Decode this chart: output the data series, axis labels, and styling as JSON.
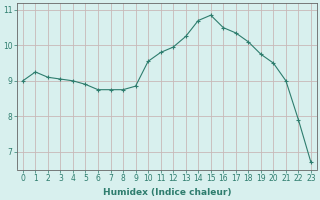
{
  "x": [
    0,
    1,
    2,
    3,
    4,
    5,
    6,
    7,
    8,
    9,
    10,
    11,
    12,
    13,
    14,
    15,
    16,
    17,
    18,
    19,
    20,
    21,
    22,
    23
  ],
  "y": [
    9.0,
    9.25,
    9.1,
    9.05,
    9.0,
    8.9,
    8.75,
    8.75,
    8.75,
    8.85,
    9.55,
    9.8,
    9.95,
    10.25,
    10.7,
    10.85,
    10.5,
    10.35,
    10.1,
    9.75,
    9.5,
    9.0,
    7.9,
    6.7
  ],
  "line_color": "#2e7d6e",
  "marker": "+",
  "marker_size": 3,
  "marker_linewidth": 0.8,
  "xlabel": "Humidex (Indice chaleur)",
  "ylim": [
    6.5,
    11.2
  ],
  "xlim": [
    -0.5,
    23.5
  ],
  "yticks": [
    7,
    8,
    9,
    10,
    11
  ],
  "xticks": [
    0,
    1,
    2,
    3,
    4,
    5,
    6,
    7,
    8,
    9,
    10,
    11,
    12,
    13,
    14,
    15,
    16,
    17,
    18,
    19,
    20,
    21,
    22,
    23
  ],
  "bg_color": "#d8f0ee",
  "grid_color_v": "#c8b8b8",
  "grid_color_h": "#c8b8b8",
  "axis_color": "#666666",
  "tick_label_fontsize": 5.5,
  "xlabel_fontsize": 6.5,
  "line_width": 0.8
}
